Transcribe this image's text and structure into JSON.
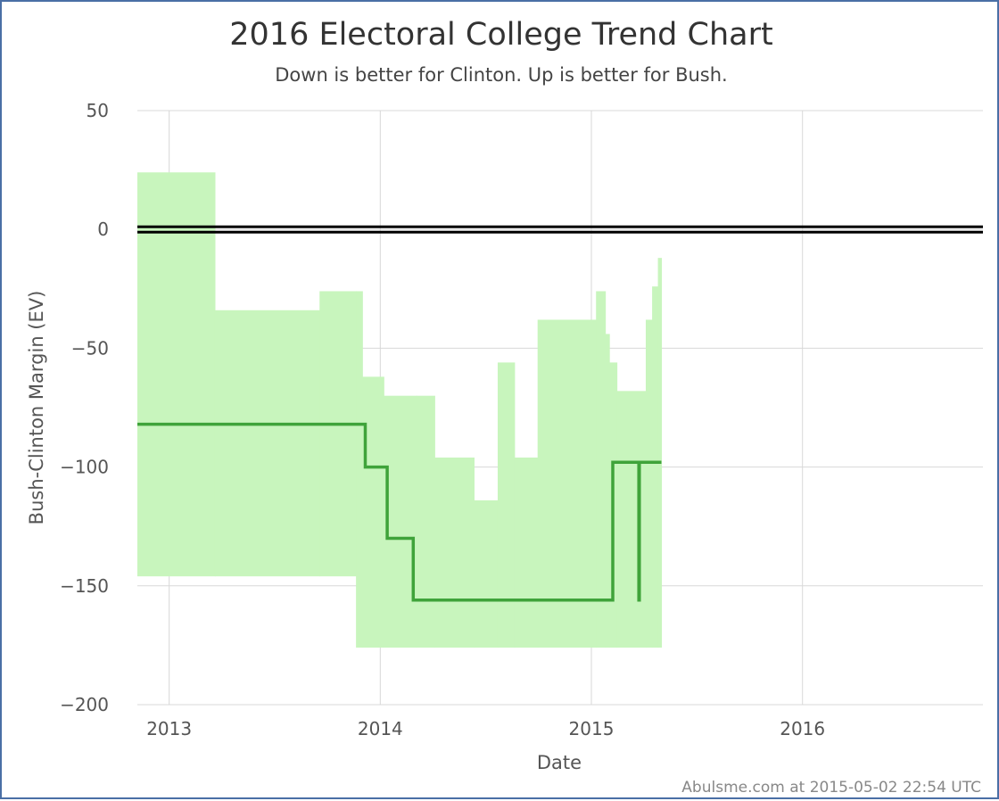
{
  "chart_data": {
    "type": "line",
    "title": "2016 Electoral College Trend Chart",
    "subtitle": "Down is better for Clinton. Up is better for Bush.",
    "xlabel": "Date",
    "ylabel": "Bush-Clinton Margin (EV)",
    "credit": "Abulsme.com at 2015-05-02 22:54 UTC",
    "x_ticks": [
      "2013",
      "2014",
      "2015",
      "2016"
    ],
    "y_ticks": [
      "50",
      "0",
      "−50",
      "−100",
      "−150",
      "−200"
    ],
    "y_tick_values": [
      50,
      0,
      -50,
      -100,
      -150,
      -200
    ],
    "xlim": [
      "2012-11-07",
      "2016-11-08"
    ],
    "ylim": [
      -200,
      50
    ],
    "grid": true,
    "zero_line": 0,
    "colors": {
      "band": "#c8f5bd",
      "line": "#3fa33a",
      "zero": "#000000",
      "grid": "#d8d8d8",
      "frame": "#4a6fa5"
    },
    "range_band": {
      "name": "",
      "x": [
        "2012-11-07",
        "2013-03-21",
        "2013-09-18",
        "2013-11-20",
        "2013-12-01",
        "2014-01-07",
        "2014-03-05",
        "2014-04-05",
        "2014-06-12",
        "2014-07-23",
        "2014-08-21",
        "2014-09-30",
        "2015-01-09",
        "2015-01-25",
        "2015-02-01",
        "2015-02-14",
        "2015-04-05",
        "2015-04-16",
        "2015-04-26"
      ],
      "upper": [
        24,
        -34,
        -26,
        -26,
        -62,
        -70,
        -70,
        -96,
        -114,
        -56,
        -96,
        -38,
        -26,
        -44,
        -56,
        -68,
        -38,
        -24,
        -12
      ],
      "lower": [
        -146,
        -146,
        -146,
        -176,
        -176,
        -176,
        -176,
        -176,
        -176,
        -176,
        -176,
        -176,
        -176,
        -176,
        -176,
        -176,
        -176,
        -176,
        -176
      ],
      "end": "2015-05-02"
    },
    "series": [
      {
        "name": "",
        "points": [
          {
            "x": "2012-11-07",
            "y": -82
          },
          {
            "x": "2013-12-06",
            "y": -82
          },
          {
            "x": "2013-12-06",
            "y": -100
          },
          {
            "x": "2014-01-13",
            "y": -100
          },
          {
            "x": "2014-01-13",
            "y": -130
          },
          {
            "x": "2014-02-27",
            "y": -130
          },
          {
            "x": "2014-02-27",
            "y": -156
          },
          {
            "x": "2015-02-07",
            "y": -156
          },
          {
            "x": "2015-02-07",
            "y": -98
          },
          {
            "x": "2015-03-24",
            "y": -98
          },
          {
            "x": "2015-03-24",
            "y": -156
          },
          {
            "x": "2015-03-25",
            "y": -156
          },
          {
            "x": "2015-03-25",
            "y": -98
          },
          {
            "x": "2015-05-02",
            "y": -98
          }
        ]
      }
    ]
  }
}
